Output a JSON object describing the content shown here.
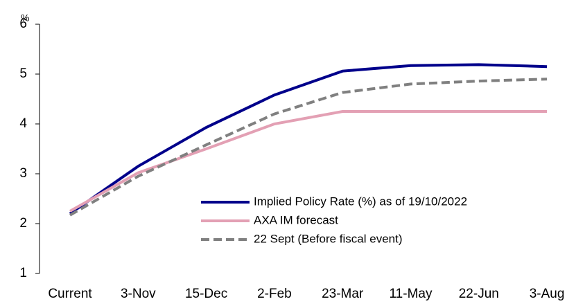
{
  "chart_data": {
    "type": "line",
    "y_unit": "%",
    "categories": [
      "Current",
      "3-Nov",
      "15-Dec",
      "2-Feb",
      "23-Mar",
      "11-May",
      "22-Jun",
      "3-Aug"
    ],
    "series": [
      {
        "name": "Implied Policy Rate (%) as of 19/10/2022",
        "color": "#00008b",
        "dash": false,
        "values": [
          2.2,
          3.15,
          3.93,
          4.58,
          5.06,
          5.17,
          5.19,
          5.15
        ]
      },
      {
        "name": "AXA IM forecast",
        "color": "#e3a0b4",
        "dash": false,
        "values": [
          2.25,
          3.02,
          3.5,
          4.0,
          4.25,
          4.25,
          4.25,
          4.25
        ]
      },
      {
        "name": "22 Sept (Before fiscal event)",
        "color": "#808080",
        "dash": true,
        "values": [
          2.17,
          2.95,
          3.58,
          4.2,
          4.63,
          4.8,
          4.86,
          4.9
        ]
      }
    ],
    "ylim": [
      1,
      6
    ],
    "yticks": [
      1,
      2,
      3,
      4,
      5,
      6
    ],
    "legend": "lower right"
  }
}
